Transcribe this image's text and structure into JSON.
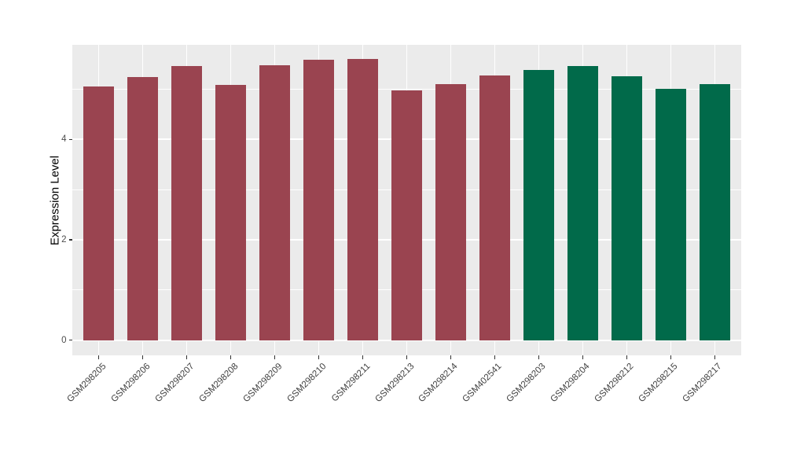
{
  "chart_data": {
    "type": "bar",
    "title": "",
    "xlabel": "",
    "ylabel": "Expression Level",
    "categories": [
      "GSM298205",
      "GSM298206",
      "GSM298207",
      "GSM298208",
      "GSM298209",
      "GSM298210",
      "GSM298211",
      "GSM298213",
      "GSM298214",
      "GSM402541",
      "GSM298203",
      "GSM298204",
      "GSM298212",
      "GSM298215",
      "GSM298217"
    ],
    "values": [
      5.05,
      5.24,
      5.46,
      5.08,
      5.47,
      5.58,
      5.6,
      4.97,
      5.1,
      5.27,
      5.38,
      5.45,
      5.26,
      5.01,
      5.09
    ],
    "bar_groups": [
      "group1",
      "group1",
      "group1",
      "group1",
      "group1",
      "group1",
      "group1",
      "group1",
      "group1",
      "group1",
      "group2",
      "group2",
      "group2",
      "group2",
      "group2"
    ],
    "group_colors": {
      "group1": "#9A4450",
      "group2": "#016A4A"
    },
    "ylim": [
      -0.3,
      5.88
    ],
    "yticks_major": [
      0,
      2,
      4
    ],
    "yticks_minor": [
      1,
      3,
      5
    ],
    "bar_rel_width": 0.7,
    "legend": "none",
    "grid": true,
    "panel_bg": "#EBEBEB",
    "grid_color": "#FFFFFF",
    "tick_color": "#333333",
    "tick_label_color": "#4D4D4D"
  }
}
